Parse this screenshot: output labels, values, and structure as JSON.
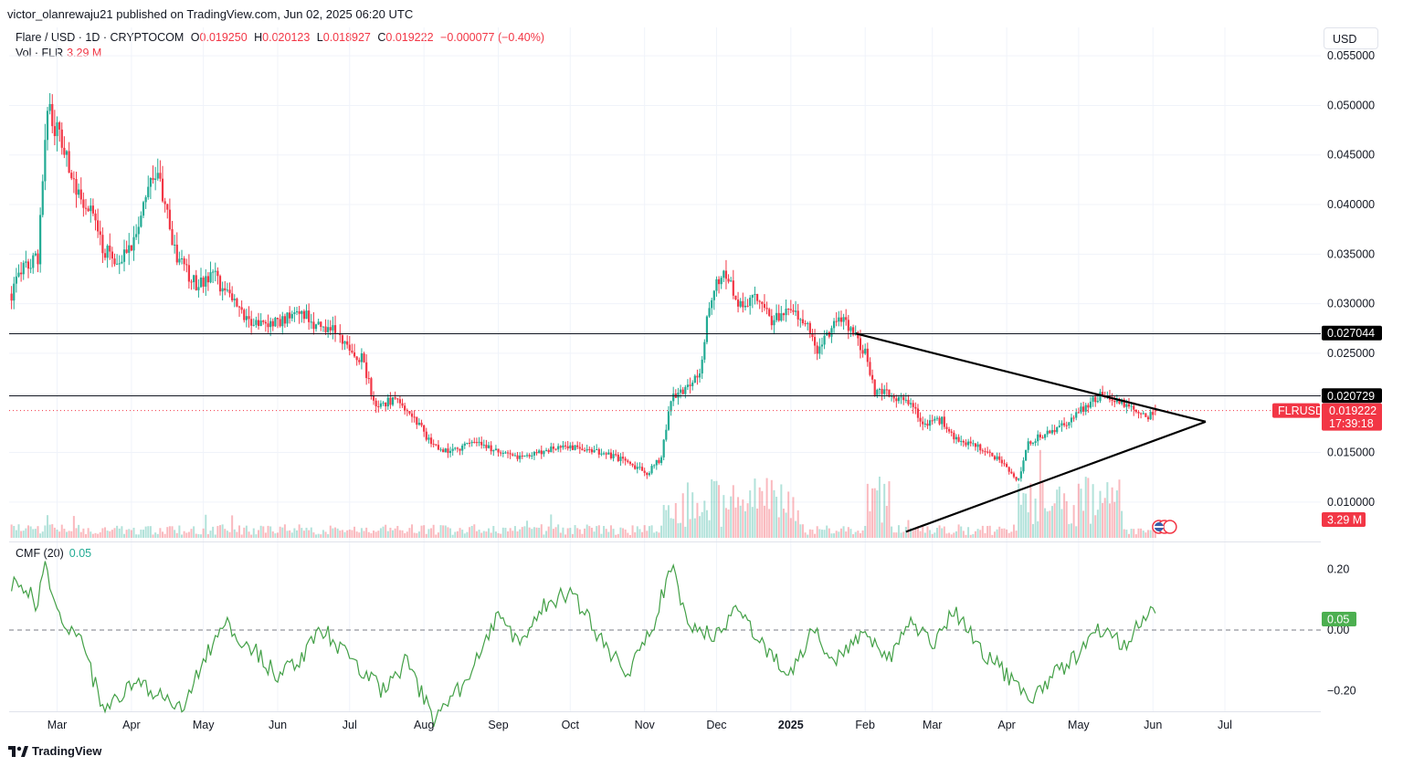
{
  "header": {
    "publish_line": "victor_olanrewaju21 published on TradingView.com, Jun 02, 2025 06:20 UTC",
    "symbol": "Flare / USD · 1D · CRYPTOCOM",
    "ohlc": {
      "o_label": "O",
      "o": "0.019250",
      "h_label": "H",
      "h": "0.020123",
      "l_label": "L",
      "l": "0.018927",
      "c_label": "C",
      "c": "0.019222",
      "change": "−0.000077 (−0.40%)"
    },
    "vol_label": "Vol · FLR",
    "vol_value": "3.29 M",
    "cmf_label": "CMF (20)",
    "cmf_value": "0.05",
    "currency": "USD"
  },
  "badges": {
    "resistance_1": "0.027044",
    "resistance_2": "0.020729",
    "ticker": "FLRUSD",
    "last_price": "0.019222",
    "countdown": "17:39:18",
    "volume": "3.29 M",
    "cmf": "0.05"
  },
  "footer": {
    "brand": "TradingView"
  },
  "colors": {
    "up": "#22ab94",
    "down": "#f23645",
    "cmf_line": "#43a047",
    "grid": "#f0f3fa",
    "level": "#131722"
  },
  "chart_data": [
    {
      "type": "candlestick",
      "title": "Flare / USD · 1D · CRYPTOCOM",
      "y_scale": "linear",
      "ylim": [
        0.0063,
        0.0575
      ],
      "y_ticks": [
        "0.055000",
        "0.050000",
        "0.045000",
        "0.040000",
        "0.035000",
        "0.030000",
        "0.025000",
        "0.015000",
        "0.010000"
      ],
      "x_range": [
        "2024-02-10",
        "2025-08-10"
      ],
      "x_ticks": [
        {
          "date": "2024-03-01",
          "label": "Mar"
        },
        {
          "date": "2024-04-01",
          "label": "Apr"
        },
        {
          "date": "2024-05-01",
          "label": "May"
        },
        {
          "date": "2024-06-01",
          "label": "Jun"
        },
        {
          "date": "2024-07-01",
          "label": "Jul"
        },
        {
          "date": "2024-08-01",
          "label": "Aug"
        },
        {
          "date": "2024-09-01",
          "label": "Sep"
        },
        {
          "date": "2024-10-01",
          "label": "Oct"
        },
        {
          "date": "2024-11-01",
          "label": "Nov"
        },
        {
          "date": "2024-12-01",
          "label": "Dec"
        },
        {
          "date": "2025-01-01",
          "label": "2025"
        },
        {
          "date": "2025-02-01",
          "label": "Feb"
        },
        {
          "date": "2025-03-01",
          "label": "Mar"
        },
        {
          "date": "2025-04-01",
          "label": "Apr"
        },
        {
          "date": "2025-05-01",
          "label": "May"
        },
        {
          "date": "2025-06-01",
          "label": "Jun"
        },
        {
          "date": "2025-07-01",
          "label": "Jul"
        }
      ],
      "close_anchors": [
        [
          "2024-02-10",
          0.0305
        ],
        [
          "2024-02-16",
          0.0336
        ],
        [
          "2024-02-22",
          0.0345
        ],
        [
          "2024-02-26",
          0.0505
        ],
        [
          "2024-02-28",
          0.0486
        ],
        [
          "2024-03-05",
          0.0445
        ],
        [
          "2024-03-10",
          0.0412
        ],
        [
          "2024-03-15",
          0.0395
        ],
        [
          "2024-03-20",
          0.0357
        ],
        [
          "2024-03-26",
          0.034
        ],
        [
          "2024-03-31",
          0.0355
        ],
        [
          "2024-04-03",
          0.0375
        ],
        [
          "2024-04-08",
          0.0415
        ],
        [
          "2024-04-11",
          0.0435
        ],
        [
          "2024-04-14",
          0.041
        ],
        [
          "2024-04-20",
          0.0345
        ],
        [
          "2024-04-28",
          0.032
        ],
        [
          "2024-05-05",
          0.033
        ],
        [
          "2024-05-12",
          0.0305
        ],
        [
          "2024-05-20",
          0.0285
        ],
        [
          "2024-05-27",
          0.0278
        ],
        [
          "2024-06-05",
          0.0285
        ],
        [
          "2024-06-12",
          0.029
        ],
        [
          "2024-06-18",
          0.0276
        ],
        [
          "2024-06-25",
          0.0272
        ],
        [
          "2024-07-01",
          0.025
        ],
        [
          "2024-07-06",
          0.0245
        ],
        [
          "2024-07-12",
          0.0195
        ],
        [
          "2024-07-20",
          0.0205
        ],
        [
          "2024-07-28",
          0.0185
        ],
        [
          "2024-08-05",
          0.0155
        ],
        [
          "2024-08-12",
          0.0152
        ],
        [
          "2024-08-22",
          0.016
        ],
        [
          "2024-09-01",
          0.015
        ],
        [
          "2024-09-10",
          0.0145
        ],
        [
          "2024-09-22",
          0.0152
        ],
        [
          "2024-09-29",
          0.0158
        ],
        [
          "2024-10-05",
          0.0152
        ],
        [
          "2024-10-15",
          0.015
        ],
        [
          "2024-10-25",
          0.014
        ],
        [
          "2024-11-02",
          0.0128
        ],
        [
          "2024-11-08",
          0.0145
        ],
        [
          "2024-11-12",
          0.0205
        ],
        [
          "2024-11-18",
          0.0215
        ],
        [
          "2024-11-24",
          0.023
        ],
        [
          "2024-11-28",
          0.03
        ],
        [
          "2024-12-03",
          0.033
        ],
        [
          "2024-12-06",
          0.0325
        ],
        [
          "2024-12-10",
          0.03
        ],
        [
          "2024-12-18",
          0.0305
        ],
        [
          "2024-12-24",
          0.0282
        ],
        [
          "2024-12-30",
          0.029
        ],
        [
          "2025-01-07",
          0.0285
        ],
        [
          "2025-01-12",
          0.0252
        ],
        [
          "2025-01-18",
          0.0275
        ],
        [
          "2025-01-21",
          0.029
        ],
        [
          "2025-01-26",
          0.0275
        ],
        [
          "2025-02-02",
          0.0245
        ],
        [
          "2025-02-05",
          0.021
        ],
        [
          "2025-02-10",
          0.0212
        ],
        [
          "2025-02-20",
          0.0198
        ],
        [
          "2025-02-26",
          0.0178
        ],
        [
          "2025-03-05",
          0.0182
        ],
        [
          "2025-03-12",
          0.016
        ],
        [
          "2025-03-20",
          0.0155
        ],
        [
          "2025-03-28",
          0.0145
        ],
        [
          "2025-04-06",
          0.0122
        ],
        [
          "2025-04-10",
          0.016
        ],
        [
          "2025-04-18",
          0.017
        ],
        [
          "2025-04-26",
          0.018
        ],
        [
          "2025-05-02",
          0.0192
        ],
        [
          "2025-05-06",
          0.02
        ],
        [
          "2025-05-10",
          0.0208
        ],
        [
          "2025-05-18",
          0.0202
        ],
        [
          "2025-05-26",
          0.019
        ],
        [
          "2025-05-30",
          0.0185
        ],
        [
          "2025-06-02",
          0.0192
        ]
      ],
      "horizontal_levels": [
        0.027044,
        0.020729
      ],
      "last_price": 0.019222,
      "triangle": {
        "upper_line": [
          [
            "2025-01-28",
            0.027
          ],
          [
            "2025-06-23",
            0.0181
          ]
        ],
        "lower_line": [
          [
            "2025-02-18",
            0.007
          ],
          [
            "2025-06-23",
            0.0181
          ]
        ]
      }
    },
    {
      "type": "bar",
      "title": "Vol · FLR",
      "series": "volume",
      "last_value": "3.29 M"
    },
    {
      "type": "line",
      "title": "CMF (20)",
      "ylim": [
        -0.3,
        0.27
      ],
      "y_ticks": [
        0.2,
        0.0,
        -0.2
      ],
      "y_tick_labels": [
        "0.20",
        "0.00",
        "−0.20"
      ],
      "zero_line": "dashed",
      "anchors": [
        [
          "2024-02-10",
          0.15
        ],
        [
          "2024-02-18",
          0.13
        ],
        [
          "2024-02-22",
          0.08
        ],
        [
          "2024-02-25",
          0.22
        ],
        [
          "2024-03-03",
          0.0
        ],
        [
          "2024-03-10",
          -0.02
        ],
        [
          "2024-03-20",
          -0.25
        ],
        [
          "2024-04-01",
          -0.18
        ],
        [
          "2024-04-10",
          -0.2
        ],
        [
          "2024-04-22",
          -0.25
        ],
        [
          "2024-05-01",
          -0.1
        ],
        [
          "2024-05-10",
          0.02
        ],
        [
          "2024-05-20",
          -0.05
        ],
        [
          "2024-06-01",
          -0.15
        ],
        [
          "2024-06-10",
          -0.1
        ],
        [
          "2024-06-20",
          0.0
        ],
        [
          "2024-07-05",
          -0.12
        ],
        [
          "2024-07-15",
          -0.2
        ],
        [
          "2024-07-25",
          -0.1
        ],
        [
          "2024-08-05",
          -0.3
        ],
        [
          "2024-08-20",
          -0.15
        ],
        [
          "2024-09-01",
          0.05
        ],
        [
          "2024-09-10",
          -0.05
        ],
        [
          "2024-09-20",
          0.08
        ],
        [
          "2024-10-01",
          0.13
        ],
        [
          "2024-10-15",
          -0.05
        ],
        [
          "2024-10-25",
          -0.15
        ],
        [
          "2024-11-05",
          0.02
        ],
        [
          "2024-11-12",
          0.22
        ],
        [
          "2024-11-20",
          0.0
        ],
        [
          "2024-12-01",
          -0.02
        ],
        [
          "2024-12-10",
          0.08
        ],
        [
          "2024-12-20",
          -0.05
        ],
        [
          "2025-01-01",
          -0.15
        ],
        [
          "2025-01-10",
          0.0
        ],
        [
          "2025-01-20",
          -0.1
        ],
        [
          "2025-02-01",
          0.0
        ],
        [
          "2025-02-10",
          -0.1
        ],
        [
          "2025-02-20",
          0.02
        ],
        [
          "2025-03-01",
          -0.05
        ],
        [
          "2025-03-10",
          0.06
        ],
        [
          "2025-03-20",
          -0.05
        ],
        [
          "2025-04-01",
          -0.15
        ],
        [
          "2025-04-10",
          -0.24
        ],
        [
          "2025-04-20",
          -0.15
        ],
        [
          "2025-05-01",
          -0.08
        ],
        [
          "2025-05-10",
          0.0
        ],
        [
          "2025-05-20",
          -0.05
        ],
        [
          "2025-05-28",
          0.03
        ],
        [
          "2025-06-01",
          0.08
        ],
        [
          "2025-06-02",
          0.05
        ]
      ]
    }
  ]
}
